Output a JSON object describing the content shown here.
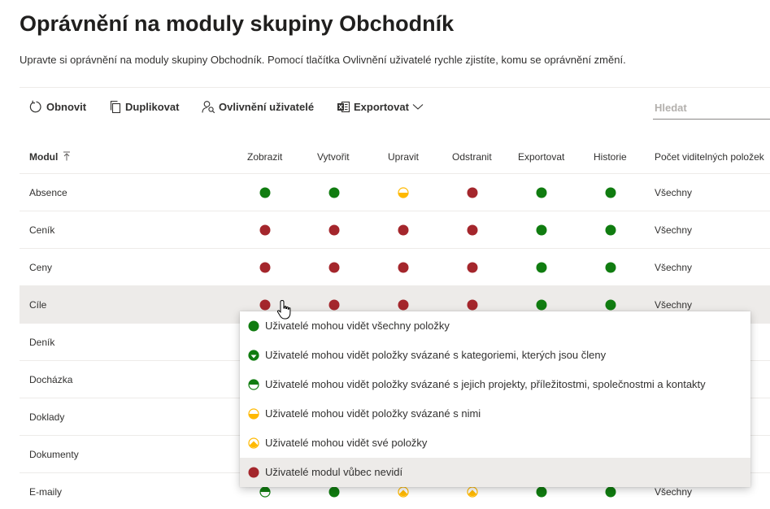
{
  "page": {
    "title": "Oprávnění na moduly skupiny Obchodník",
    "description": "Upravte si oprávnění na moduly skupiny Obchodník. Pomocí tlačítka Ovlivnění uživatelé rychle zjistíte, komu se oprávnění změní."
  },
  "toolbar": {
    "refresh_label": "Obnovit",
    "duplicate_label": "Duplikovat",
    "affected_users_label": "Ovlivnění uživatelé",
    "export_label": "Exportovat",
    "search_placeholder": "Hledat"
  },
  "columns": {
    "module": "Modul",
    "view": "Zobrazit",
    "create": "Vytvořit",
    "edit": "Upravit",
    "delete": "Odstranit",
    "export": "Exportovat",
    "history": "Historie",
    "visible_count": "Počet viditelných položek"
  },
  "colors": {
    "green": "#107c10",
    "red": "#a4262c",
    "yellow": "#ffb900",
    "hover_row": "#edebe9"
  },
  "permission_levels": [
    "full-green",
    "half-green-category",
    "half-green-projects",
    "half-yellow-own",
    "yellow-own",
    "red"
  ],
  "rows": [
    {
      "name": "Absence",
      "perms": [
        "green",
        "green",
        "yellow-half",
        "red",
        "green",
        "green"
      ],
      "count": "Všechny"
    },
    {
      "name": "Ceník",
      "perms": [
        "red",
        "red",
        "red",
        "red",
        "green",
        "green"
      ],
      "count": "Všechny"
    },
    {
      "name": "Ceny",
      "perms": [
        "red",
        "red",
        "red",
        "red",
        "green",
        "green"
      ],
      "count": "Všechny"
    },
    {
      "name": "Cíle",
      "perms": [
        "red",
        "red",
        "red",
        "red",
        "green",
        "green"
      ],
      "count": "Všechny"
    },
    {
      "name": "Deník",
      "perms": [],
      "count": ""
    },
    {
      "name": "Docházka",
      "perms": [],
      "count": ""
    },
    {
      "name": "Doklady",
      "perms": [],
      "count": ""
    },
    {
      "name": "Dokumenty",
      "perms": [],
      "count": ""
    },
    {
      "name": "E-maily",
      "perms": [
        "green-half",
        "green",
        "yellow-own",
        "yellow-own",
        "green",
        "green"
      ],
      "count": "Všechny"
    }
  ],
  "dropdown": {
    "items": [
      {
        "icon": "green-full",
        "label": "Uživatelé mohou vidět všechny položky"
      },
      {
        "icon": "green-category",
        "label": "Uživatelé mohou vidět položky svázané s kategoriemi, kterých jsou členy"
      },
      {
        "icon": "green-half",
        "label": "Uživatelé mohou vidět položky svázané s jejich projekty, příležitostmi, společnostmi a kontakty"
      },
      {
        "icon": "yellow-half",
        "label": "Uživatelé mohou vidět položky svázané s nimi"
      },
      {
        "icon": "yellow-own",
        "label": "Uživatelé mohou vidět své položky"
      },
      {
        "icon": "red-full",
        "label": "Uživatelé modul vůbec nevidí"
      }
    ]
  }
}
